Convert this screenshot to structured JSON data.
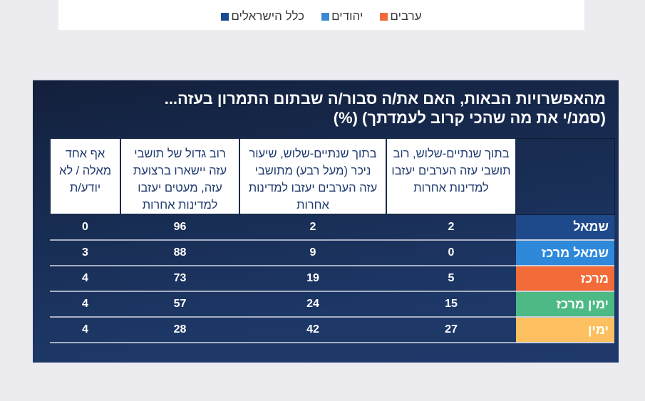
{
  "top_chart_legend": {
    "items": [
      {
        "label": "כלל הישראלים",
        "color": "#1B4A8E"
      },
      {
        "label": "יהודים",
        "color": "#3B8AD0"
      },
      {
        "label": "ערבים",
        "color": "#F26B38"
      }
    ]
  },
  "chart_data": {
    "type": "table",
    "title": "מהאפשרויות הבאות, האם את/ה סבור/ה שבתום התמרון בעזה...",
    "subtitle": "(סמנ/י את מה שהכי קרוב לעמדתך) (%)",
    "unit": "%",
    "columns": [
      "בתוך שנתיים-שלוש, רוב תושבי עזה הערבים יעזבו למדינות אחרות",
      "בתוך שנתיים-שלוש, שיעור ניכר (מעל רבע) מתושבי עזה הערבים יעזבו למדינות אחרות",
      "רוב גדול של תושבי עזה יישארו ברצועת עזה, מעטים יעזבו למדינות אחרות",
      "אף אחד מאלה / לא יודע/ת"
    ],
    "rows": [
      {
        "label": "שמאל",
        "color": "#1E4A8C",
        "values": [
          2,
          2,
          96,
          0
        ]
      },
      {
        "label": "שמאל מרכז",
        "color": "#2E89DB",
        "values": [
          0,
          9,
          88,
          3
        ]
      },
      {
        "label": "מרכז",
        "color": "#F26B38",
        "values": [
          5,
          19,
          73,
          4
        ]
      },
      {
        "label": "ימין מרכז",
        "color": "#4DBA85",
        "values": [
          15,
          24,
          57,
          4
        ]
      },
      {
        "label": "ימין",
        "color": "#FCC060",
        "values": [
          27,
          42,
          28,
          4
        ]
      }
    ]
  }
}
